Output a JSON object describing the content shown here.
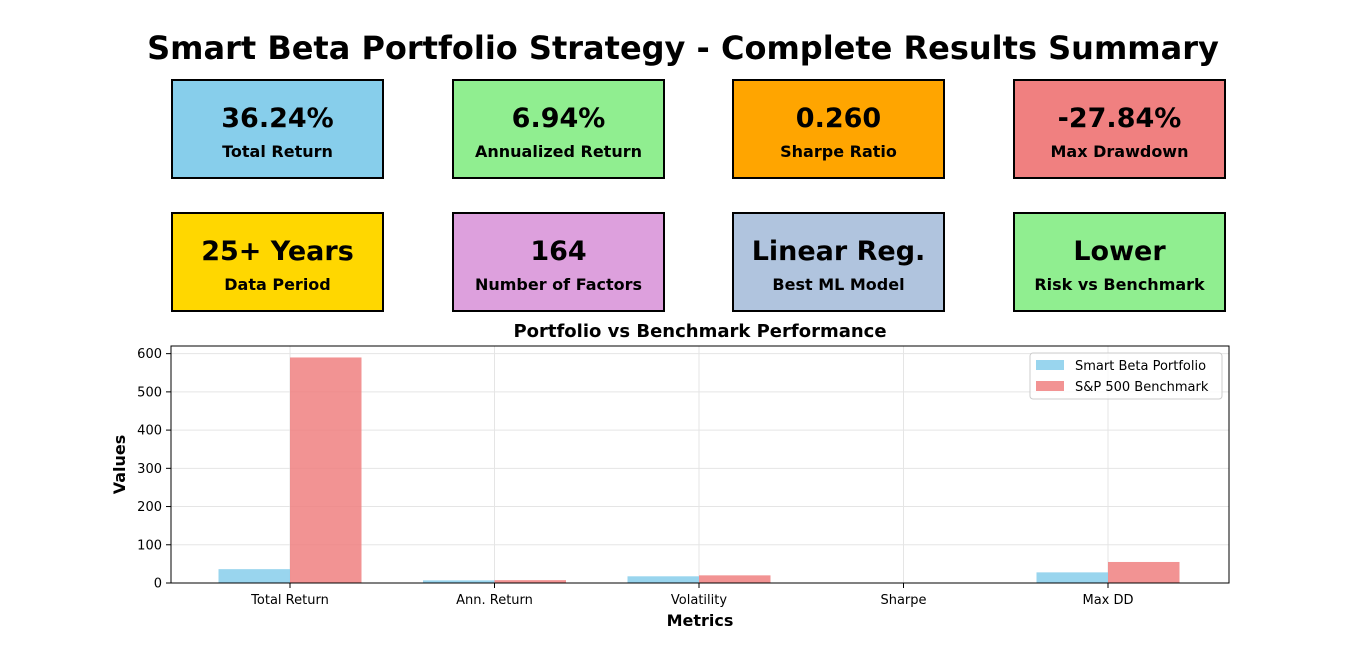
{
  "title": "Smart Beta Portfolio Strategy - Complete Results Summary",
  "cards": [
    {
      "value": "36.24%",
      "label": "Total Return",
      "color": "#87CEEB"
    },
    {
      "value": "6.94%",
      "label": "Annualized Return",
      "color": "#90EE90"
    },
    {
      "value": "0.260",
      "label": "Sharpe Ratio",
      "color": "#FFA500"
    },
    {
      "value": "-27.84%",
      "label": "Max Drawdown",
      "color": "#F08080"
    },
    {
      "value": "25+ Years",
      "label": "Data Period",
      "color": "#FFD700"
    },
    {
      "value": "164",
      "label": "Number of Factors",
      "color": "#DDA0DD"
    },
    {
      "value": "Linear Reg.",
      "label": "Best ML Model",
      "color": "#B0C4DE"
    },
    {
      "value": "Lower",
      "label": "Risk vs Benchmark",
      "color": "#90EE90"
    }
  ],
  "chart_data": {
    "type": "bar",
    "title": "Portfolio vs Benchmark Performance",
    "xlabel": "Metrics",
    "ylabel": "Values",
    "categories": [
      "Total Return",
      "Ann. Return",
      "Volatility",
      "Sharpe",
      "Max DD"
    ],
    "series": [
      {
        "name": "Smart Beta Portfolio",
        "values": [
          36.24,
          6.94,
          17.5,
          0.26,
          27.84
        ],
        "color": "#87CEEB"
      },
      {
        "name": "S&P 500 Benchmark",
        "values": [
          590,
          7.5,
          20,
          0.4,
          55
        ],
        "color": "#F08080"
      }
    ],
    "ylim": [
      0,
      620
    ],
    "yticks": [
      0,
      100,
      200,
      300,
      400,
      500,
      600
    ],
    "grid": true,
    "legend": "top-right"
  }
}
